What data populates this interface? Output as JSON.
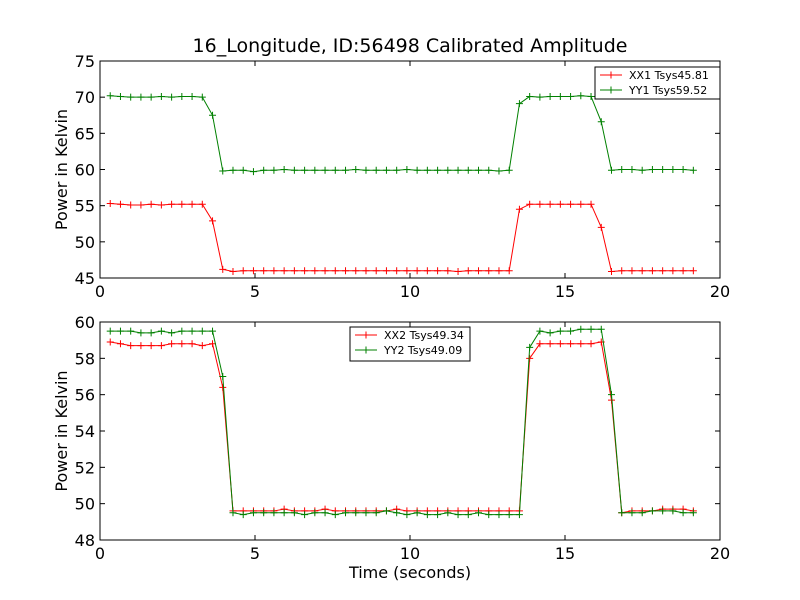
{
  "figure": {
    "title": "16_Longitude, ID:56498 Calibrated Amplitude"
  },
  "chart_data": [
    {
      "type": "line",
      "title": "16_Longitude, ID:56498 Calibrated Amplitude",
      "xlabel": "",
      "ylabel": "Power in Kelvin",
      "xlim": [
        0,
        20
      ],
      "ylim": [
        45,
        75
      ],
      "xticks": [
        0,
        5,
        10,
        15,
        20
      ],
      "yticks": [
        45,
        50,
        55,
        60,
        65,
        70,
        75
      ],
      "grid": false,
      "legend_position": "top-right",
      "series": [
        {
          "name": "XX1 Tsys45.81",
          "color": "#ff0000",
          "marker": "plus",
          "x": [
            0.33,
            0.66,
            0.99,
            1.32,
            1.65,
            1.98,
            2.31,
            2.64,
            2.97,
            3.3,
            3.63,
            3.96,
            4.29,
            4.62,
            4.95,
            5.28,
            5.61,
            5.94,
            6.27,
            6.6,
            6.93,
            7.26,
            7.59,
            7.92,
            8.25,
            8.58,
            8.91,
            9.24,
            9.57,
            9.9,
            10.23,
            10.56,
            10.89,
            11.22,
            11.55,
            11.88,
            12.21,
            12.54,
            12.87,
            13.2,
            13.53,
            13.86,
            14.19,
            14.52,
            14.85,
            15.18,
            15.51,
            15.84,
            16.17,
            16.5,
            16.83,
            17.16,
            17.49,
            17.82,
            18.15,
            18.48,
            18.81,
            19.14
          ],
          "y": [
            55.3,
            55.2,
            55.1,
            55.1,
            55.2,
            55.1,
            55.2,
            55.2,
            55.2,
            55.2,
            52.9,
            46.2,
            45.9,
            46.0,
            46.0,
            46.0,
            46.0,
            46.0,
            46.0,
            46.0,
            46.0,
            46.0,
            46.0,
            46.0,
            46.0,
            46.0,
            46.0,
            46.0,
            46.0,
            46.0,
            46.0,
            46.0,
            46.0,
            46.0,
            45.9,
            46.0,
            46.0,
            46.0,
            46.0,
            46.0,
            54.5,
            55.2,
            55.2,
            55.2,
            55.2,
            55.2,
            55.2,
            55.2,
            52.0,
            45.9,
            46.0,
            46.0,
            46.0,
            46.0,
            46.0,
            46.0,
            46.0,
            46.0
          ]
        },
        {
          "name": "YY1 Tsys59.52",
          "color": "#008000",
          "marker": "plus",
          "x": [
            0.33,
            0.66,
            0.99,
            1.32,
            1.65,
            1.98,
            2.31,
            2.64,
            2.97,
            3.3,
            3.63,
            3.96,
            4.29,
            4.62,
            4.95,
            5.28,
            5.61,
            5.94,
            6.27,
            6.6,
            6.93,
            7.26,
            7.59,
            7.92,
            8.25,
            8.58,
            8.91,
            9.24,
            9.57,
            9.9,
            10.23,
            10.56,
            10.89,
            11.22,
            11.55,
            11.88,
            12.21,
            12.54,
            12.87,
            13.2,
            13.53,
            13.86,
            14.19,
            14.52,
            14.85,
            15.18,
            15.51,
            15.84,
            16.17,
            16.5,
            16.83,
            17.16,
            17.49,
            17.82,
            18.15,
            18.48,
            18.81,
            19.14
          ],
          "y": [
            70.2,
            70.1,
            70.0,
            70.0,
            70.0,
            70.1,
            70.0,
            70.1,
            70.1,
            70.0,
            67.5,
            59.8,
            59.9,
            59.9,
            59.7,
            59.9,
            59.9,
            60.0,
            59.9,
            59.9,
            59.9,
            59.9,
            59.9,
            59.9,
            60.0,
            59.9,
            59.9,
            59.9,
            59.9,
            60.0,
            59.9,
            59.9,
            59.9,
            59.9,
            59.9,
            59.9,
            59.9,
            59.9,
            59.8,
            59.9,
            69.1,
            70.1,
            70.0,
            70.1,
            70.1,
            70.1,
            70.2,
            70.1,
            66.6,
            59.9,
            60.0,
            60.0,
            59.9,
            60.0,
            60.0,
            60.0,
            60.0,
            59.9
          ]
        }
      ]
    },
    {
      "type": "line",
      "title": "",
      "xlabel": "Time (seconds)",
      "ylabel": "Power in Kelvin",
      "xlim": [
        0,
        20
      ],
      "ylim": [
        48,
        60
      ],
      "xticks": [
        0,
        5,
        10,
        15,
        20
      ],
      "yticks": [
        48,
        50,
        52,
        54,
        56,
        58,
        60
      ],
      "grid": false,
      "legend_position": "top-center",
      "series": [
        {
          "name": "XX2 Tsys49.34",
          "color": "#ff0000",
          "marker": "plus",
          "x": [
            0.33,
            0.66,
            0.99,
            1.32,
            1.65,
            1.98,
            2.31,
            2.64,
            2.97,
            3.3,
            3.63,
            3.96,
            4.29,
            4.62,
            4.95,
            5.28,
            5.61,
            5.94,
            6.27,
            6.6,
            6.93,
            7.26,
            7.59,
            7.92,
            8.25,
            8.58,
            8.91,
            9.24,
            9.57,
            9.9,
            10.23,
            10.56,
            10.89,
            11.22,
            11.55,
            11.88,
            12.21,
            12.54,
            12.87,
            13.2,
            13.53,
            13.86,
            14.19,
            14.52,
            14.85,
            15.18,
            15.51,
            15.84,
            16.17,
            16.5,
            16.83,
            17.16,
            17.49,
            17.82,
            18.15,
            18.48,
            18.81,
            19.14
          ],
          "y": [
            58.9,
            58.8,
            58.7,
            58.7,
            58.7,
            58.7,
            58.8,
            58.8,
            58.8,
            58.7,
            58.8,
            56.4,
            49.6,
            49.6,
            49.6,
            49.6,
            49.6,
            49.7,
            49.6,
            49.6,
            49.6,
            49.7,
            49.6,
            49.6,
            49.6,
            49.6,
            49.6,
            49.6,
            49.7,
            49.6,
            49.6,
            49.6,
            49.6,
            49.6,
            49.6,
            49.6,
            49.6,
            49.6,
            49.6,
            49.6,
            49.6,
            58.0,
            58.8,
            58.8,
            58.8,
            58.8,
            58.8,
            58.8,
            58.9,
            55.7,
            49.5,
            49.6,
            49.6,
            49.6,
            49.7,
            49.7,
            49.7,
            49.6
          ]
        },
        {
          "name": "YY2 Tsys49.09",
          "color": "#008000",
          "marker": "plus",
          "x": [
            0.33,
            0.66,
            0.99,
            1.32,
            1.65,
            1.98,
            2.31,
            2.64,
            2.97,
            3.3,
            3.63,
            3.96,
            4.29,
            4.62,
            4.95,
            5.28,
            5.61,
            5.94,
            6.27,
            6.6,
            6.93,
            7.26,
            7.59,
            7.92,
            8.25,
            8.58,
            8.91,
            9.24,
            9.57,
            9.9,
            10.23,
            10.56,
            10.89,
            11.22,
            11.55,
            11.88,
            12.21,
            12.54,
            12.87,
            13.2,
            13.53,
            13.86,
            14.19,
            14.52,
            14.85,
            15.18,
            15.51,
            15.84,
            16.17,
            16.5,
            16.83,
            17.16,
            17.49,
            17.82,
            18.15,
            18.48,
            18.81,
            19.14
          ],
          "y": [
            59.5,
            59.5,
            59.5,
            59.4,
            59.4,
            59.5,
            59.4,
            59.5,
            59.5,
            59.5,
            59.5,
            57.0,
            49.5,
            49.4,
            49.5,
            49.5,
            49.5,
            49.5,
            49.5,
            49.4,
            49.5,
            49.5,
            49.4,
            49.5,
            49.5,
            49.5,
            49.5,
            49.6,
            49.5,
            49.4,
            49.5,
            49.4,
            49.4,
            49.5,
            49.4,
            49.4,
            49.5,
            49.4,
            49.4,
            49.4,
            49.4,
            58.6,
            59.5,
            59.4,
            59.5,
            59.5,
            59.6,
            59.6,
            59.6,
            56.0,
            49.5,
            49.5,
            49.5,
            49.6,
            49.6,
            49.6,
            49.5,
            49.5
          ]
        }
      ]
    }
  ]
}
